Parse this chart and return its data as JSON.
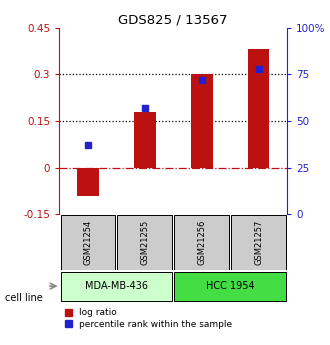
{
  "title": "GDS825 / 13567",
  "samples": [
    "GSM21254",
    "GSM21255",
    "GSM21256",
    "GSM21257"
  ],
  "log_ratio": [
    -0.09,
    0.18,
    0.3,
    0.38
  ],
  "percentile_rank": [
    37,
    57,
    72,
    78
  ],
  "left_ylim": [
    -0.15,
    0.45
  ],
  "right_ylim": [
    0,
    100
  ],
  "left_yticks": [
    -0.15,
    0,
    0.15,
    0.3,
    0.45
  ],
  "right_yticks": [
    0,
    25,
    50,
    75,
    100
  ],
  "right_yticklabels": [
    "0",
    "25",
    "50",
    "75",
    "100%"
  ],
  "hlines_dotted": [
    0.15,
    0.3
  ],
  "hline_dashdot": 0.0,
  "bar_color": "#bb1111",
  "dot_color": "#2222cc",
  "cell_lines": [
    {
      "label": "MDA-MB-436",
      "samples": [
        0,
        1
      ],
      "color": "#ccffcc"
    },
    {
      "label": "HCC 1954",
      "samples": [
        2,
        3
      ],
      "color": "#44dd44"
    }
  ],
  "gsm_box_color": "#cccccc",
  "cell_line_label": "cell line",
  "legend_red_label": "log ratio",
  "legend_blue_label": "percentile rank within the sample",
  "arrow_color": "#888888"
}
